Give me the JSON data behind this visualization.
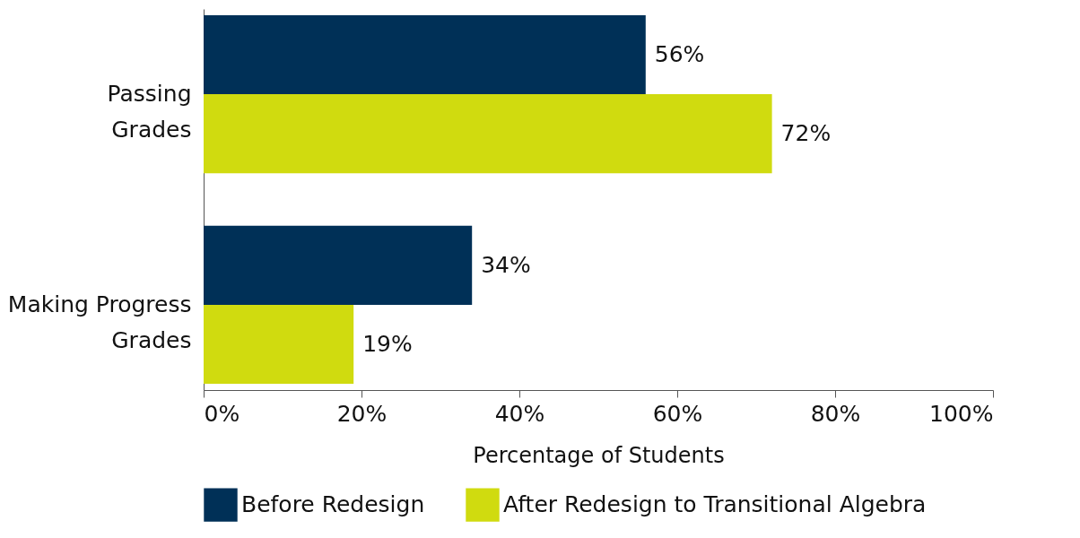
{
  "chart_data": {
    "type": "bar",
    "orientation": "horizontal",
    "categories": [
      "Passing Grades",
      "Making Progress Grades"
    ],
    "series": [
      {
        "name": "Before Redesign",
        "color": "#003057",
        "values": [
          56,
          34
        ],
        "value_labels": [
          "56%",
          "34%"
        ]
      },
      {
        "name": "After Redesign to Transitional Algebra",
        "color": "#d0db0f",
        "values": [
          72,
          19
        ],
        "value_labels": [
          "72%",
          "19%"
        ]
      }
    ],
    "xlabel": "Percentage of Students",
    "xlim": [
      0,
      100
    ],
    "xticks": [
      {
        "value": 0,
        "label": "0%"
      },
      {
        "value": 20,
        "label": "20%"
      },
      {
        "value": 40,
        "label": "40%"
      },
      {
        "value": 60,
        "label": "60%"
      },
      {
        "value": 80,
        "label": "80%"
      },
      {
        "value": 100,
        "label": "100%"
      }
    ],
    "grid": false,
    "legend": "bottom"
  }
}
